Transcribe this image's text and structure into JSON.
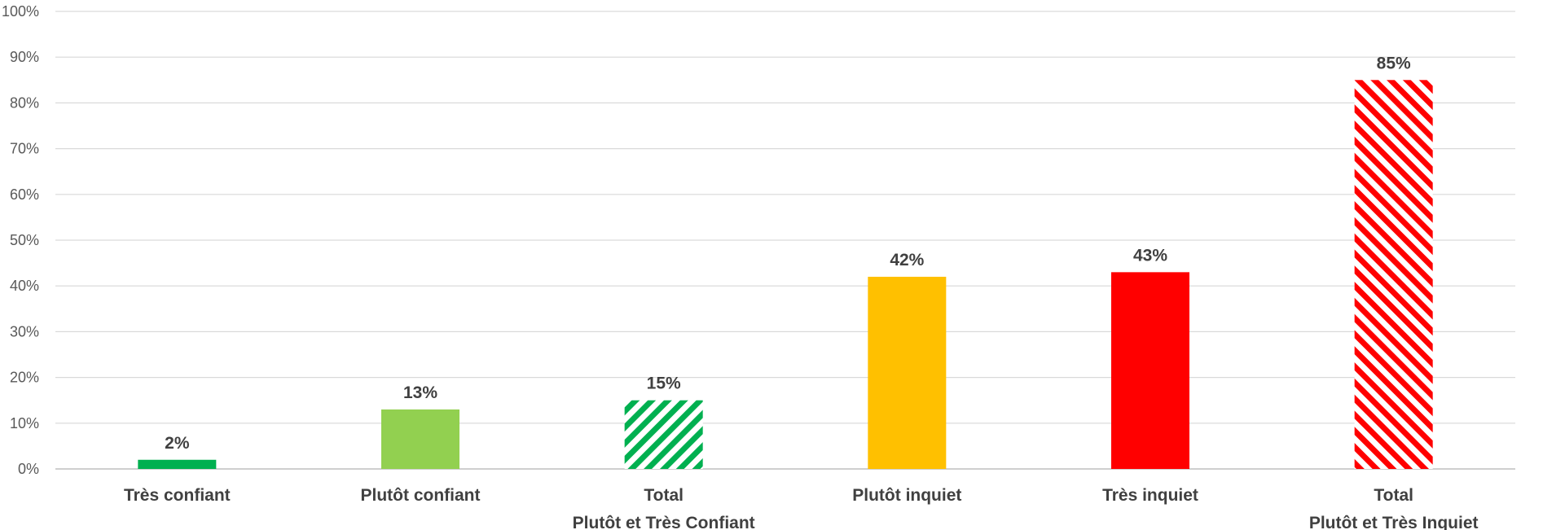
{
  "chart_data": {
    "type": "bar",
    "categories": [
      [
        "Très confiant"
      ],
      [
        "Plutôt confiant"
      ],
      [
        "Total",
        "Plutôt et Très Confiant"
      ],
      [
        "Plutôt inquiet"
      ],
      [
        "Très inquiet"
      ],
      [
        "Total",
        "Plutôt et Très Inquiet"
      ]
    ],
    "values": [
      2,
      13,
      15,
      42,
      43,
      85
    ],
    "data_labels": [
      "2%",
      "13%",
      "15%",
      "42%",
      "43%",
      "85%"
    ],
    "colors": [
      "#00b050",
      "#92d050",
      "#00b050",
      "#ffc000",
      "#ff0000",
      "#ff0000"
    ],
    "hatched": [
      false,
      false,
      true,
      false,
      false,
      true
    ],
    "yticks": [
      "0%",
      "10%",
      "20%",
      "30%",
      "40%",
      "50%",
      "60%",
      "70%",
      "80%",
      "90%",
      "100%"
    ],
    "ylim": [
      0,
      100
    ],
    "grid": true,
    "legend": "none"
  }
}
